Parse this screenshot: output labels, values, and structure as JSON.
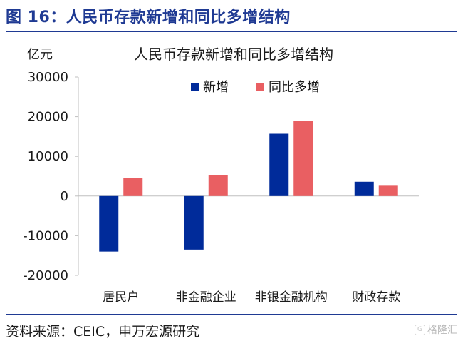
{
  "figure": {
    "title": "图 16：人民币存款新增和同比多增结构",
    "source": "资料来源：CEIC，申万宏源研究",
    "watermark": "格隆汇"
  },
  "chart_data": {
    "type": "bar",
    "title": "人民币存款新增和同比多增结构",
    "ylabel": "亿元",
    "xlabel": "",
    "categories": [
      "居民户",
      "非金融企业",
      "非银金融机构",
      "财政存款"
    ],
    "series": [
      {
        "name": "新增",
        "color": "#002B9A",
        "values": [
          -14000,
          -13500,
          15700,
          3600
        ]
      },
      {
        "name": "同比多增",
        "color": "#E95F62",
        "values": [
          4500,
          5300,
          19000,
          2600
        ]
      }
    ],
    "ylim": [
      -20000,
      30000
    ],
    "yticks": [
      -20000,
      -10000,
      0,
      10000,
      20000,
      30000
    ],
    "grid": false,
    "legend": "top-right"
  }
}
